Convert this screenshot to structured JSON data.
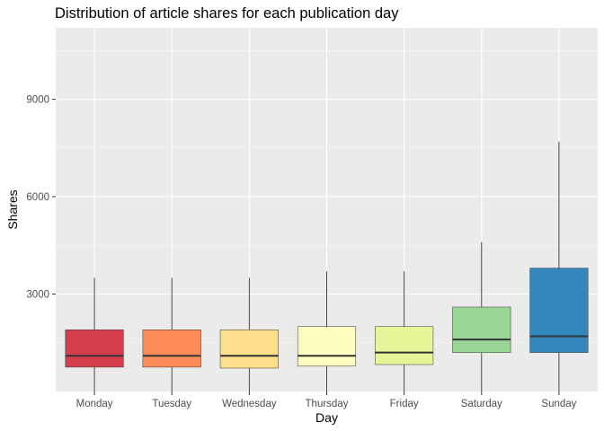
{
  "chart_data": {
    "type": "boxplot",
    "title": "Distribution of article shares for each publication day",
    "xlabel": "Day",
    "ylabel": "Shares",
    "ylim": [
      0,
      11200
    ],
    "yticks": [
      3000,
      6000,
      9000
    ],
    "yticks_labels": [
      "3000",
      "6000",
      "9000"
    ],
    "grid": true,
    "legend": "none",
    "categories": [
      "Monday",
      "Tuesday",
      "Wednesday",
      "Thursday",
      "Friday",
      "Saturday",
      "Sunday"
    ],
    "colors": [
      "#D53E4F",
      "#FC8D59",
      "#FEE08B",
      "#FFFFBF",
      "#E6F598",
      "#99D594",
      "#3288BD"
    ],
    "boxes": [
      {
        "whisker_low": 0,
        "q1": 750,
        "median": 1100,
        "q3": 1900,
        "whisker_high": 3500
      },
      {
        "whisker_low": 0,
        "q1": 750,
        "median": 1100,
        "q3": 1900,
        "whisker_high": 3500
      },
      {
        "whisker_low": 0,
        "q1": 720,
        "median": 1100,
        "q3": 1900,
        "whisker_high": 3500
      },
      {
        "whisker_low": 0,
        "q1": 780,
        "median": 1100,
        "q3": 2000,
        "whisker_high": 3700
      },
      {
        "whisker_low": 0,
        "q1": 830,
        "median": 1200,
        "q3": 2000,
        "whisker_high": 3700
      },
      {
        "whisker_low": 0,
        "q1": 1200,
        "median": 1600,
        "q3": 2600,
        "whisker_high": 4600
      },
      {
        "whisker_low": 0,
        "q1": 1200,
        "median": 1700,
        "q3": 3800,
        "whisker_high": 7700
      }
    ]
  }
}
